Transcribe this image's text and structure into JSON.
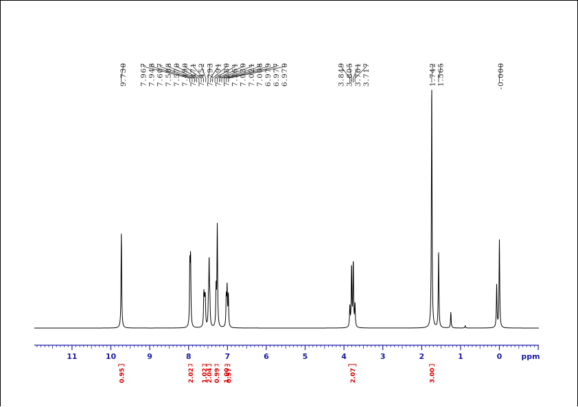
{
  "chart_data": {
    "type": "line",
    "title": "",
    "xlabel": "ppm",
    "ylabel": "",
    "x_axis_reversed": true,
    "xlim": [
      12.0,
      -1.0
    ],
    "x_tick_labels": [
      "11",
      "10",
      "9",
      "8",
      "7",
      "6",
      "5",
      "4",
      "3",
      "2",
      "1",
      "0"
    ],
    "x_unit_label": "ppm",
    "colors": {
      "spectrum": "#000000",
      "axis": "#1a1aa6",
      "integral": "#e00000",
      "label_text": "#222222"
    },
    "peak_labels": [
      "9.730",
      "7.967",
      "7.948",
      "7.607",
      "7.588",
      "7.570",
      "7.490",
      "7.471",
      "7.452",
      "7.293",
      "7.291",
      "7.280",
      "7.261",
      "7.030",
      "7.021",
      "7.008",
      "6.979",
      "6.977",
      "6.970",
      "3.849",
      "3.805",
      "3.761",
      "3.717",
      "1.742",
      "1.565",
      "-0.000"
    ],
    "integrals": [
      {
        "value": "0.95",
        "from": 9.8,
        "to": 9.66
      },
      {
        "value": "2.02",
        "from": 8.0,
        "to": 7.91
      },
      {
        "value": "1.02",
        "from": 7.64,
        "to": 7.55
      },
      {
        "value": "2.04",
        "from": 7.53,
        "to": 7.42
      },
      {
        "value": "0.99",
        "from": 7.32,
        "to": 7.24
      },
      {
        "value": "1.00",
        "from": 7.06,
        "to": 7.0
      },
      {
        "value": "0.97",
        "from": 7.0,
        "to": 6.94
      },
      {
        "value": "2.07",
        "from": 3.88,
        "to": 3.69
      },
      {
        "value": "3.00",
        "from": 1.8,
        "to": 1.68
      }
    ],
    "peaks": [
      {
        "ppm": 9.73,
        "height": 0.42
      },
      {
        "ppm": 7.967,
        "height": 0.27
      },
      {
        "ppm": 7.948,
        "height": 0.29
      },
      {
        "ppm": 7.607,
        "height": 0.14
      },
      {
        "ppm": 7.588,
        "height": 0.1
      },
      {
        "ppm": 7.57,
        "height": 0.12
      },
      {
        "ppm": 7.49,
        "height": 0.09
      },
      {
        "ppm": 7.471,
        "height": 0.28
      },
      {
        "ppm": 7.452,
        "height": 0.1
      },
      {
        "ppm": 7.291,
        "height": 0.17
      },
      {
        "ppm": 7.261,
        "height": 0.45
      },
      {
        "ppm": 7.03,
        "height": 0.13
      },
      {
        "ppm": 7.008,
        "height": 0.17
      },
      {
        "ppm": 6.977,
        "height": 0.14
      },
      {
        "ppm": 3.849,
        "height": 0.09
      },
      {
        "ppm": 3.805,
        "height": 0.27
      },
      {
        "ppm": 3.761,
        "height": 0.29
      },
      {
        "ppm": 3.717,
        "height": 0.1
      },
      {
        "ppm": 1.742,
        "height": 1.09
      },
      {
        "ppm": 1.565,
        "height": 0.34
      },
      {
        "ppm": 1.25,
        "height": 0.07
      },
      {
        "ppm": 0.88,
        "height": 0.01
      },
      {
        "ppm": 0.07,
        "height": 0.19
      },
      {
        "ppm": 0.0,
        "height": 0.39
      }
    ]
  }
}
